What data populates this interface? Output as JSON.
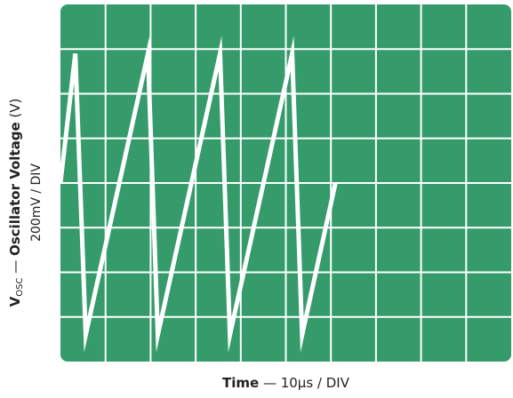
{
  "chart_data": {
    "type": "line",
    "title": "",
    "colors": {
      "screen": "#369b6b",
      "grid": "#ffffff",
      "trace": "#ffffff"
    },
    "grid": true,
    "divisions": {
      "x": 10,
      "y": 8
    },
    "xlabel": {
      "bold": "Time",
      "rest": " — 10µs / DIV"
    },
    "ylabel": {
      "v": "V",
      "sub": "OSC",
      "dash": " — ",
      "bold": "Oscillator Voltage",
      "unit": " (V)",
      "line2": "200mV / DIV"
    },
    "x_unit": "µs",
    "y_unit": "mV",
    "xlim": [
      0,
      100
    ],
    "ylim": [
      -800,
      800
    ],
    "series": [
      {
        "values": [
          {
            "x": 0,
            "y": 0
          },
          {
            "x": 3.3,
            "y": 580
          },
          {
            "x": 5.6,
            "y": -680
          },
          {
            "x": 19.4,
            "y": 580
          },
          {
            "x": 21.6,
            "y": -680
          },
          {
            "x": 35.4,
            "y": 580
          },
          {
            "x": 37.6,
            "y": -680
          },
          {
            "x": 51.4,
            "y": 580
          },
          {
            "x": 53.6,
            "y": -680
          },
          {
            "x": 61.0,
            "y": 0
          }
        ]
      }
    ]
  }
}
